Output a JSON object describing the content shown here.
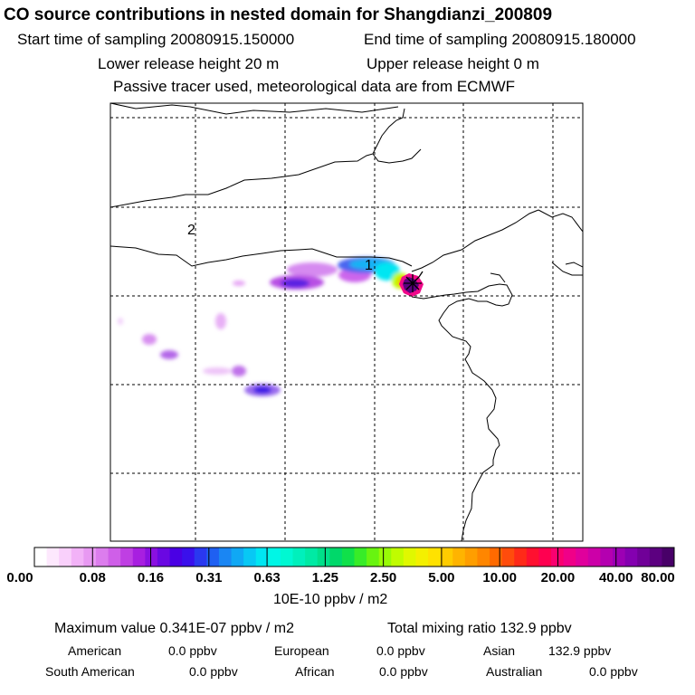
{
  "header": {
    "title": "CO  source contributions in nested domain for Shangdianzi_200809",
    "start_time": "Start time of sampling 20080915.150000",
    "end_time": "End time of sampling 20080915.180000",
    "lower_height": "Lower release height   20 m",
    "upper_height": "Upper release height    0 m",
    "tracer_note": "Passive tracer used, meteorological data are from ECMWF"
  },
  "map": {
    "region_labels": [
      "1",
      "2"
    ],
    "station_marker": "asterisk-star"
  },
  "colorbar": {
    "ticks": [
      "0.00",
      "0.08",
      "0.16",
      "0.31",
      "0.63",
      "1.25",
      "2.50",
      "5.00",
      "10.00",
      "20.00",
      "40.00",
      "80.00"
    ],
    "units": "10E-10 ppbv / m2",
    "colors": [
      "#ffffff",
      "#fde8fd",
      "#f9d0fb",
      "#f2b2f7",
      "#e899f2",
      "#dc7ded",
      "#cf5fe8",
      "#bf3fe3",
      "#a81fe0",
      "#8a10e0",
      "#6a08e2",
      "#4a00e4",
      "#3a10ec",
      "#2a38f0",
      "#1f60f2",
      "#1a86f3",
      "#10a8f4",
      "#08c8f4",
      "#00e6f2",
      "#00f6e6",
      "#00f8d2",
      "#00f0bc",
      "#00eaa4",
      "#00e08a",
      "#00d86a",
      "#10e04a",
      "#38ec28",
      "#68f410",
      "#98fa06",
      "#c0fc00",
      "#e0f800",
      "#f4f000",
      "#ffe200",
      "#ffcc00",
      "#ffb400",
      "#ff9e00",
      "#ff8600",
      "#ff6a00",
      "#ff4c0c",
      "#ff2a18",
      "#ff1030",
      "#ff0050",
      "#fa0070",
      "#f00088",
      "#e0009c",
      "#cc00a8",
      "#b400b0",
      "#9c00b4",
      "#8400b0",
      "#700098",
      "#5c0080",
      "#480068"
    ]
  },
  "summary": {
    "max_value": "Maximum value  0.341E-07 ppbv / m2",
    "total_ratio": "Total mixing ratio      132.9 ppbv",
    "sources": [
      {
        "name": "American",
        "value": "0.0 ppbv"
      },
      {
        "name": "European",
        "value": "0.0 ppbv"
      },
      {
        "name": "Asian",
        "value": "132.9 ppbv"
      },
      {
        "name": "South American",
        "value": "0.0 ppbv"
      },
      {
        "name": "African",
        "value": "0.0 ppbv"
      },
      {
        "name": "Australian",
        "value": "0.0 ppbv"
      }
    ]
  }
}
